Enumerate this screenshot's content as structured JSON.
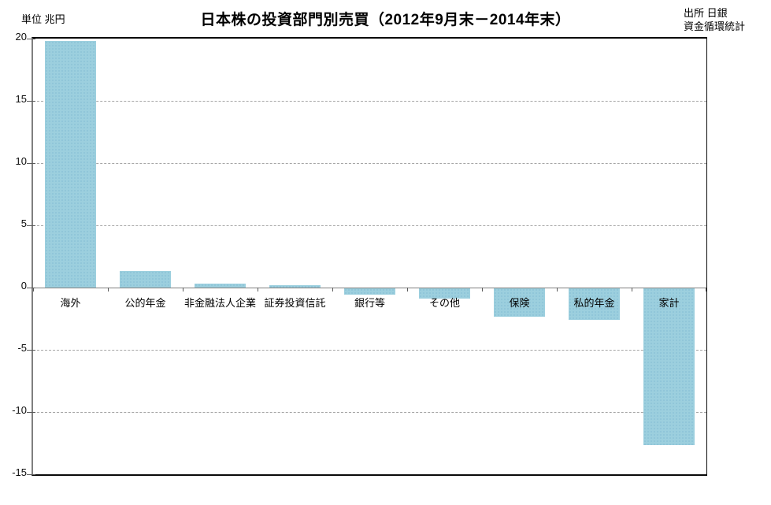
{
  "header": {
    "unit_label": "単位 兆円",
    "title": "日本株の投資部門別売買（2012年9月末－2014年末）",
    "source_line1": "出所 日銀",
    "source_line2": "資金循環統計"
  },
  "chart_data": {
    "type": "bar",
    "title": "日本株の投資部門別売買（2012年9月末－2014年末）",
    "unit": "兆円",
    "categories": [
      "海外",
      "公的年金",
      "非金融法人企業",
      "証券投資信託",
      "銀行等",
      "その他",
      "保険",
      "私的年金",
      "家計"
    ],
    "values": [
      19.8,
      1.3,
      0.3,
      0.2,
      -0.5,
      -0.8,
      -2.3,
      -2.5,
      -12.6
    ],
    "ylim": [
      -15,
      20
    ],
    "ytick_step": 5,
    "yticks": [
      20,
      15,
      10,
      5,
      0,
      -5,
      -10,
      -15
    ],
    "grid": true,
    "legend": "none",
    "colors": {
      "bar_fill": "#9ccfde",
      "bar_dot": "#6ea9cb",
      "gridline": "#a6a6a6",
      "axis_line": "#808080",
      "frame": "#0a0a0a",
      "text": "#000000"
    }
  }
}
